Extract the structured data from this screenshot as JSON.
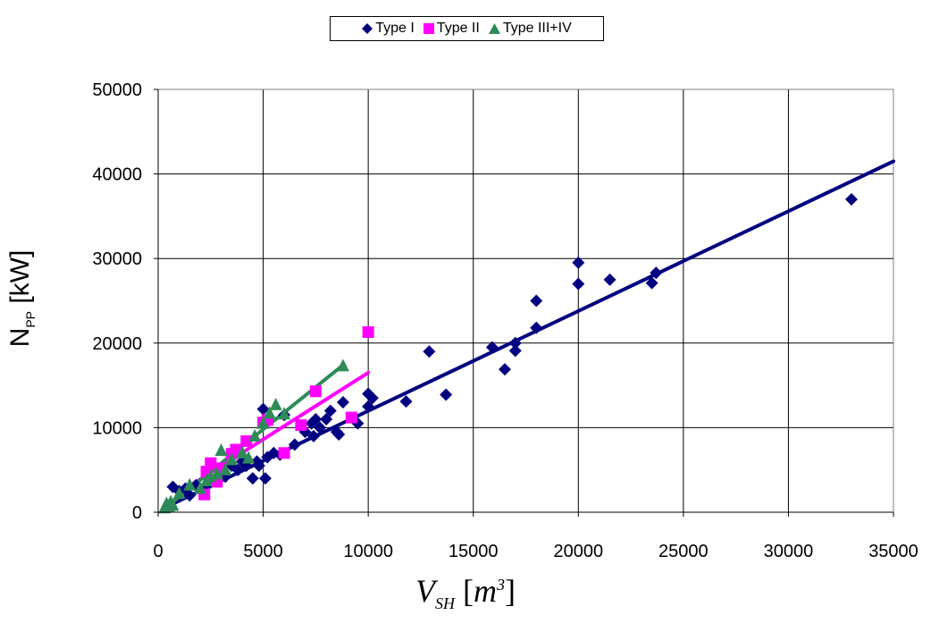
{
  "chart_data": {
    "type": "scatter",
    "title": "",
    "ylabel": {
      "main": "N",
      "sub": "PP",
      "unit": " [kW]"
    },
    "xlabel": {
      "main": "V",
      "sub": "SH",
      "unit_open": " [",
      "unit_var": "m",
      "unit_sup": "3",
      "unit_close": "]"
    },
    "xlim": [
      0,
      35000
    ],
    "ylim": [
      0,
      50000
    ],
    "x_ticks": [
      0,
      5000,
      10000,
      15000,
      20000,
      25000,
      30000,
      35000
    ],
    "y_ticks": [
      0,
      10000,
      20000,
      30000,
      40000,
      50000
    ],
    "grid": true,
    "legend_position": "top-center",
    "series": [
      {
        "name": "Type I",
        "color": "#000080",
        "marker": "diamond",
        "points": [
          [
            700,
            3000
          ],
          [
            1000,
            2500
          ],
          [
            1300,
            2800
          ],
          [
            1500,
            2000
          ],
          [
            1800,
            3200
          ],
          [
            2200,
            3000
          ],
          [
            2500,
            3500
          ],
          [
            2800,
            4000
          ],
          [
            3000,
            4500
          ],
          [
            3200,
            4200
          ],
          [
            3500,
            5500
          ],
          [
            3800,
            5000
          ],
          [
            4000,
            6000
          ],
          [
            4200,
            5500
          ],
          [
            4500,
            4000
          ],
          [
            4700,
            6000
          ],
          [
            4800,
            5500
          ],
          [
            5000,
            12200
          ],
          [
            5100,
            4000
          ],
          [
            5200,
            6500
          ],
          [
            5500,
            7000
          ],
          [
            5800,
            6800
          ],
          [
            6000,
            11500
          ],
          [
            6500,
            8000
          ],
          [
            7000,
            9500
          ],
          [
            7300,
            10500
          ],
          [
            7400,
            9000
          ],
          [
            7500,
            11000
          ],
          [
            7700,
            10000
          ],
          [
            8000,
            11000
          ],
          [
            8200,
            12000
          ],
          [
            8500,
            9500
          ],
          [
            8600,
            9200
          ],
          [
            8800,
            13000
          ],
          [
            9500,
            10500
          ],
          [
            10000,
            12500
          ],
          [
            10000,
            14000
          ],
          [
            10200,
            13500
          ],
          [
            11800,
            13100
          ],
          [
            12900,
            19000
          ],
          [
            13700,
            13900
          ],
          [
            15900,
            19500
          ],
          [
            16500,
            16900
          ],
          [
            17000,
            19100
          ],
          [
            17000,
            20000
          ],
          [
            18000,
            21800
          ],
          [
            18000,
            25000
          ],
          [
            20000,
            27000
          ],
          [
            20000,
            29500
          ],
          [
            21500,
            27500
          ],
          [
            23500,
            27100
          ],
          [
            23700,
            28300
          ],
          [
            33000,
            37000
          ]
        ]
      },
      {
        "name": "Type II",
        "color": "#FF00FF",
        "marker": "square",
        "points": [
          [
            2200,
            2100
          ],
          [
            2300,
            4800
          ],
          [
            2500,
            5800
          ],
          [
            2800,
            3600
          ],
          [
            3000,
            5200
          ],
          [
            3500,
            6900
          ],
          [
            3700,
            7400
          ],
          [
            4200,
            8400
          ],
          [
            5000,
            10600
          ],
          [
            5200,
            10900
          ],
          [
            6000,
            7000
          ],
          [
            6800,
            10300
          ],
          [
            7500,
            14300
          ],
          [
            9200,
            11200
          ],
          [
            10000,
            21300
          ]
        ]
      },
      {
        "name": "Type III+IV",
        "color": "#2E8B57",
        "marker": "triangle",
        "points": [
          [
            300,
            500
          ],
          [
            400,
            1000
          ],
          [
            500,
            700
          ],
          [
            600,
            1200
          ],
          [
            700,
            800
          ],
          [
            1000,
            2200
          ],
          [
            1500,
            3200
          ],
          [
            2000,
            2800
          ],
          [
            2300,
            3700
          ],
          [
            2500,
            4200
          ],
          [
            2800,
            4500
          ],
          [
            3000,
            7300
          ],
          [
            3200,
            5000
          ],
          [
            3500,
            6200
          ],
          [
            4000,
            7000
          ],
          [
            4300,
            6400
          ],
          [
            4600,
            9000
          ],
          [
            5000,
            10500
          ],
          [
            5300,
            11700
          ],
          [
            5600,
            12700
          ],
          [
            6000,
            11600
          ],
          [
            8800,
            17300
          ]
        ]
      }
    ],
    "trendlines": [
      {
        "series": "Type I",
        "color": "#000080",
        "x": [
          700,
          35000
        ],
        "y": [
          1000,
          41500
        ]
      },
      {
        "series": "Type II",
        "color": "#FF00FF",
        "x": [
          1000,
          10000
        ],
        "y": [
          2300,
          16500
        ]
      },
      {
        "series": "Type III+IV",
        "color": "#2E8B57",
        "x": [
          300,
          8800
        ],
        "y": [
          400,
          17400
        ]
      }
    ]
  }
}
